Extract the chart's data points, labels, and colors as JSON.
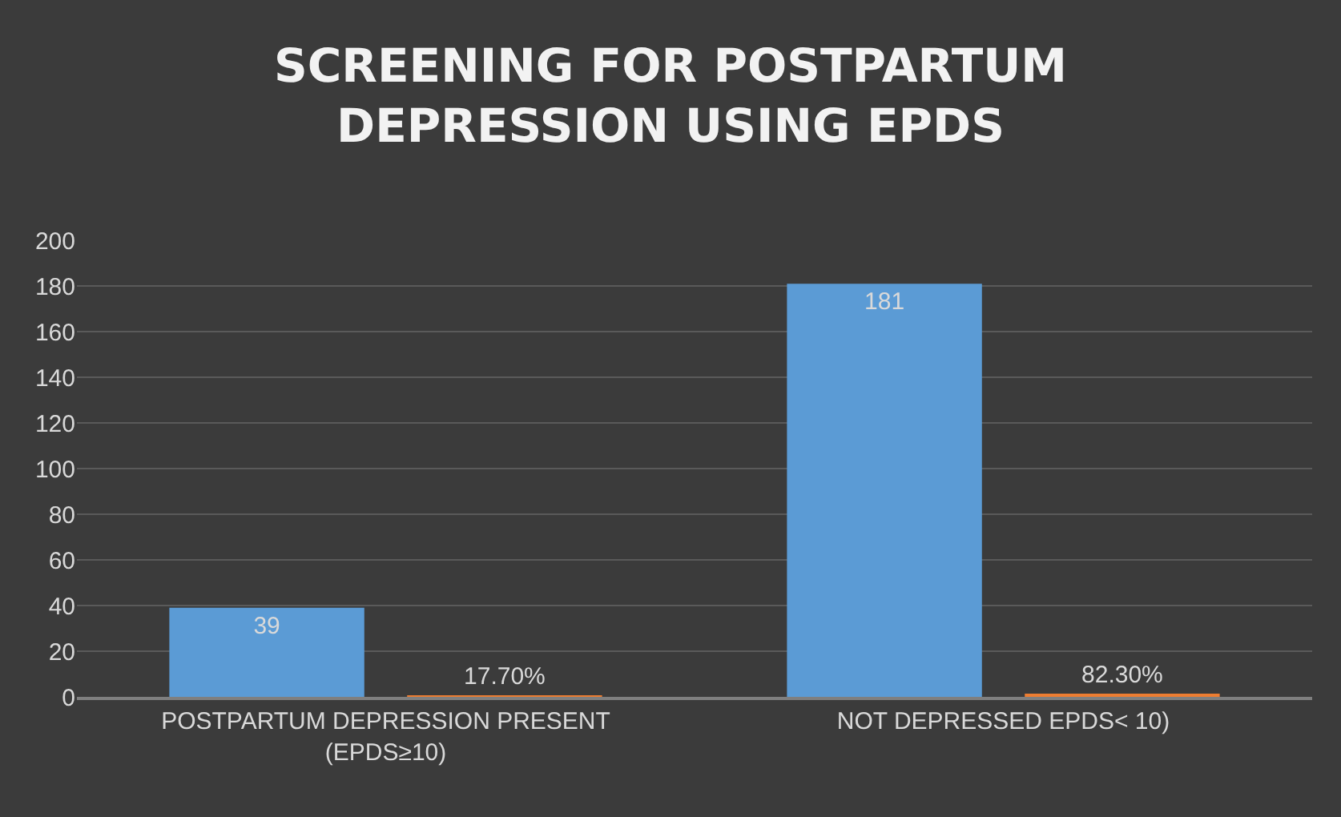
{
  "chart_data": {
    "type": "bar",
    "title": "SCREENING FOR POSTPARTUM DEPRESSION USING EPDS",
    "categories": [
      "POSTPARTUM DEPRESSION PRESENT (EPDS≥10)",
      "NOT DEPRESSED EPDS< 10)"
    ],
    "series": [
      {
        "color": "#5b9bd5",
        "values": [
          39,
          181
        ],
        "value_labels": [
          "39",
          "181"
        ]
      },
      {
        "color": "#ed7d31",
        "values": [
          0.177,
          0.823
        ],
        "value_labels": [
          "17.70%",
          "82.30%"
        ]
      }
    ],
    "ylim": [
      0,
      200
    ],
    "yticks": [
      0,
      20,
      40,
      60,
      80,
      100,
      120,
      140,
      160,
      180,
      200
    ],
    "grid": "y"
  }
}
